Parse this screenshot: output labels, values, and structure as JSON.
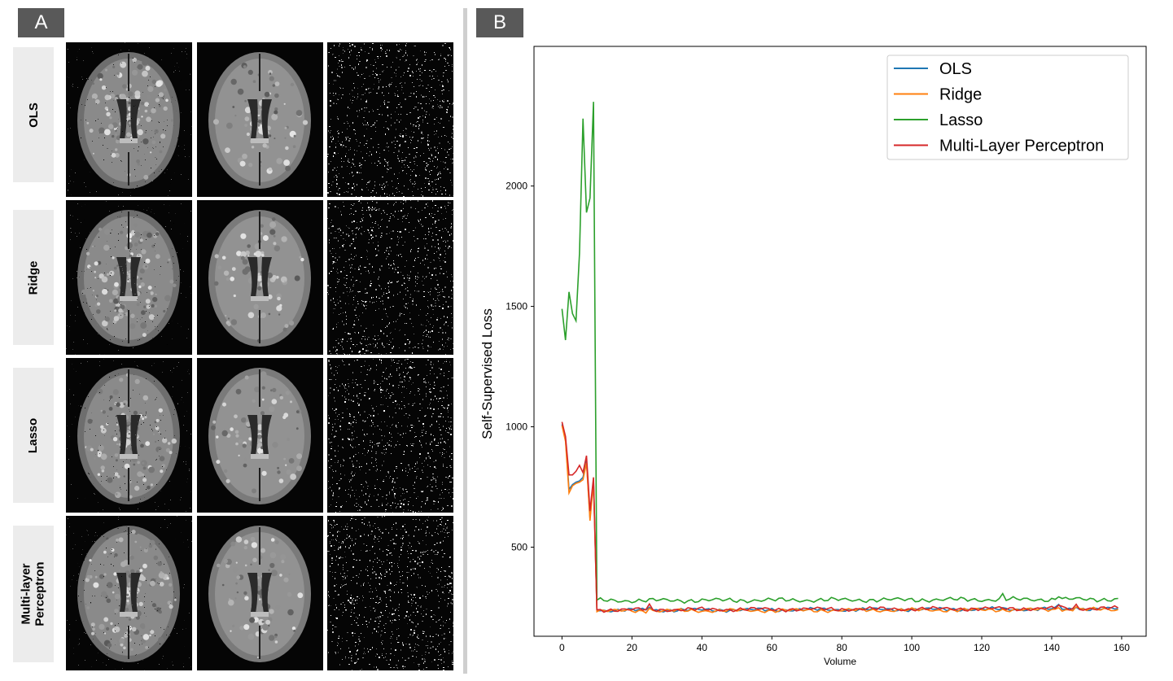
{
  "panels": {
    "a_label": "A",
    "b_label": "B"
  },
  "panel_a": {
    "rows": [
      "OLS",
      "Ridge",
      "Lasso",
      "Multi-layer\nPerceptron"
    ],
    "columns": 3
  },
  "colors": {
    "OLS": "#1f77b4",
    "Ridge": "#ff7f0e",
    "Lasso": "#2ca02c",
    "Multi-Layer Perceptron": "#d62728",
    "tag_bg": "#595959",
    "row_label_bg": "#ececec"
  },
  "chart_data": {
    "type": "line",
    "title": "",
    "xlabel": "Volume",
    "ylabel": "Self-Supervised Loss",
    "xlim": [
      -8,
      167
    ],
    "ylim": [
      130,
      2580
    ],
    "xticks": [
      0,
      20,
      40,
      60,
      80,
      100,
      120,
      140,
      160
    ],
    "yticks": [
      500,
      1000,
      1500,
      2000
    ],
    "legend_position": "top-right",
    "grid": false,
    "series": [
      {
        "name": "OLS",
        "points": [
          [
            0,
            1010
          ],
          [
            1,
            950
          ],
          [
            2,
            740
          ],
          [
            3,
            760
          ],
          [
            4,
            770
          ],
          [
            5,
            775
          ],
          [
            6,
            790
          ],
          [
            7,
            860
          ],
          [
            8,
            620
          ],
          [
            9,
            780
          ],
          [
            10,
            235
          ],
          [
            160,
            240
          ]
        ],
        "tail": {
          "from": 10,
          "to": 159,
          "base": 238,
          "amp": 10,
          "step": 0.9
        }
      },
      {
        "name": "Ridge",
        "points": [
          [
            0,
            1005
          ],
          [
            1,
            940
          ],
          [
            2,
            725
          ],
          [
            3,
            755
          ],
          [
            4,
            765
          ],
          [
            5,
            770
          ],
          [
            6,
            780
          ],
          [
            7,
            850
          ],
          [
            8,
            610
          ],
          [
            9,
            770
          ],
          [
            10,
            232
          ]
        ],
        "tail": {
          "from": 10,
          "to": 159,
          "base": 235,
          "amp": 10,
          "step": 0.9
        }
      },
      {
        "name": "Lasso",
        "points": [
          [
            0,
            1490
          ],
          [
            1,
            1360
          ],
          [
            2,
            1560
          ],
          [
            3,
            1470
          ],
          [
            4,
            1440
          ],
          [
            5,
            1720
          ],
          [
            6,
            2280
          ],
          [
            7,
            1890
          ],
          [
            8,
            1950
          ],
          [
            9,
            2350
          ],
          [
            10,
            280
          ]
        ],
        "tail": {
          "from": 10,
          "to": 159,
          "base": 278,
          "amp": 12,
          "step": 1.1
        }
      },
      {
        "name": "Multi-Layer Perceptron",
        "points": [
          [
            0,
            1020
          ],
          [
            1,
            960
          ],
          [
            2,
            800
          ],
          [
            3,
            800
          ],
          [
            4,
            815
          ],
          [
            5,
            840
          ],
          [
            6,
            810
          ],
          [
            7,
            880
          ],
          [
            8,
            650
          ],
          [
            9,
            790
          ],
          [
            10,
            240
          ]
        ],
        "tail": {
          "from": 10,
          "to": 159,
          "base": 240,
          "amp": 11,
          "step": 1.0
        }
      }
    ]
  }
}
